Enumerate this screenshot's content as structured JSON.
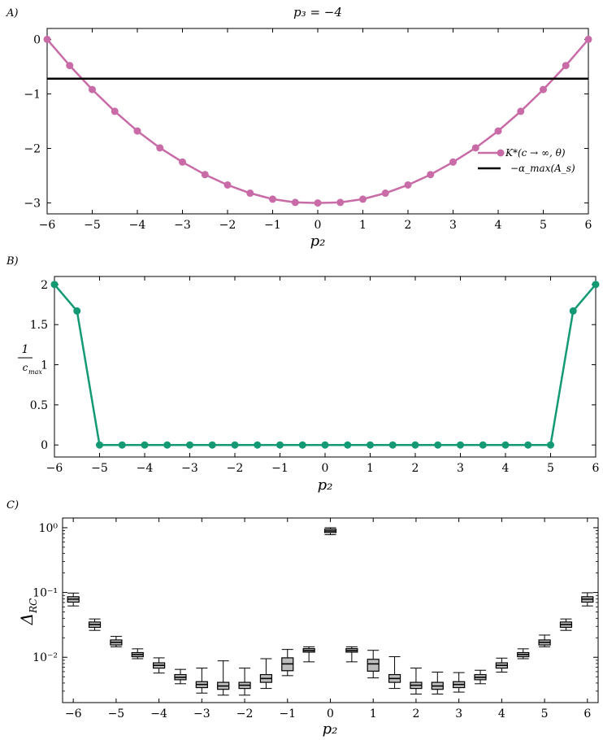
{
  "figure": {
    "title": "p₃ = −4"
  },
  "chart_data": [
    {
      "panel": "A)",
      "type": "line",
      "xlabel": "p₂",
      "ylabel": "",
      "xlim": [
        -6,
        6
      ],
      "ylim": [
        -3.2,
        0.2
      ],
      "xticks": [
        -6,
        -5,
        -4,
        -3,
        -2,
        -1,
        0,
        1,
        2,
        3,
        4,
        5,
        6
      ],
      "yticks": [
        0,
        -1,
        -2,
        -3
      ],
      "legend_position": "right",
      "series": [
        {
          "name": "K*(c → ∞, θ)",
          "color": "#c86ba6",
          "marker": "circle",
          "x": [
            -6,
            -5.5,
            -5,
            -4.5,
            -4,
            -3.5,
            -3,
            -2.5,
            -2,
            -1.5,
            -1,
            -0.5,
            0,
            0.5,
            1,
            1.5,
            2,
            2.5,
            3,
            3.5,
            4,
            4.5,
            5,
            5.5,
            6
          ],
          "y": [
            0,
            -0.48,
            -0.92,
            -1.32,
            -1.68,
            -1.99,
            -2.25,
            -2.48,
            -2.67,
            -2.82,
            -2.93,
            -2.99,
            -3.0,
            -2.99,
            -2.93,
            -2.82,
            -2.67,
            -2.48,
            -2.25,
            -1.99,
            -1.68,
            -1.32,
            -0.92,
            -0.48,
            0
          ]
        },
        {
          "name": "−α_max(A_s)",
          "color": "#000000",
          "marker": "none",
          "x": [
            -6,
            6
          ],
          "y": [
            -0.72,
            -0.72
          ]
        }
      ]
    },
    {
      "panel": "B)",
      "type": "line",
      "xlabel": "p₂",
      "ylabel": "1 / c_max",
      "xlim": [
        -6,
        6
      ],
      "ylim": [
        -0.15,
        2.1
      ],
      "xticks": [
        -6,
        -5,
        -4,
        -3,
        -2,
        -1,
        0,
        1,
        2,
        3,
        4,
        5,
        6
      ],
      "yticks": [
        0,
        0.5,
        1,
        1.5,
        2
      ],
      "series": [
        {
          "name": "",
          "color": "#139a74",
          "marker": "circle",
          "x": [
            -6,
            -5.5,
            -5,
            -4.5,
            -4,
            -3.5,
            -3,
            -2.5,
            -2,
            -1.5,
            -1,
            -0.5,
            0,
            0.5,
            1,
            1.5,
            2,
            2.5,
            3,
            3.5,
            4,
            4.5,
            5,
            5.5,
            6
          ],
          "y": [
            2,
            1.67,
            0,
            0,
            0,
            0,
            0,
            0,
            0,
            0,
            0,
            0,
            0,
            0,
            0,
            0,
            0,
            0,
            0,
            0,
            0,
            0,
            0,
            1.67,
            2
          ]
        }
      ]
    },
    {
      "panel": "C)",
      "type": "box",
      "xlabel": "p₂",
      "ylabel": "Δ_RC",
      "yscale": "log",
      "xlim": [
        -6.25,
        6.25
      ],
      "ylim_log10": [
        -2.7,
        0.15
      ],
      "xticks": [
        -6,
        -5,
        -4,
        -3,
        -2,
        -1,
        0,
        1,
        2,
        3,
        4,
        5,
        6
      ],
      "yticks": [
        "10⁰",
        "10⁻¹",
        "10⁻²"
      ],
      "ytick_values": [
        1,
        0.1,
        0.01
      ],
      "box_color": "#bdbdbd",
      "boxes": [
        {
          "x": -6,
          "min": 0.062,
          "q1": 0.071,
          "median": 0.079,
          "q3": 0.086,
          "max": 0.098
        },
        {
          "x": -5.5,
          "min": 0.026,
          "q1": 0.029,
          "median": 0.032,
          "q3": 0.035,
          "max": 0.039
        },
        {
          "x": -5,
          "min": 0.0145,
          "q1": 0.0155,
          "median": 0.017,
          "q3": 0.0185,
          "max": 0.021
        },
        {
          "x": -4.5,
          "min": 0.0095,
          "q1": 0.0102,
          "median": 0.011,
          "q3": 0.0118,
          "max": 0.0135
        },
        {
          "x": -4,
          "min": 0.0057,
          "q1": 0.0068,
          "median": 0.0075,
          "q3": 0.0082,
          "max": 0.0098
        },
        {
          "x": -3.5,
          "min": 0.0039,
          "q1": 0.0045,
          "median": 0.0049,
          "q3": 0.0054,
          "max": 0.0065
        },
        {
          "x": -3,
          "min": 0.0028,
          "q1": 0.0034,
          "median": 0.0038,
          "q3": 0.0042,
          "max": 0.0068
        },
        {
          "x": -2.5,
          "min": 0.0026,
          "q1": 0.0032,
          "median": 0.0036,
          "q3": 0.0041,
          "max": 0.0088
        },
        {
          "x": -2,
          "min": 0.0026,
          "q1": 0.0033,
          "median": 0.0037,
          "q3": 0.0041,
          "max": 0.0068
        },
        {
          "x": -1.5,
          "min": 0.0033,
          "q1": 0.0041,
          "median": 0.0047,
          "q3": 0.0054,
          "max": 0.0095
        },
        {
          "x": -1,
          "min": 0.0052,
          "q1": 0.0062,
          "median": 0.0079,
          "q3": 0.0098,
          "max": 0.0132
        },
        {
          "x": -0.5,
          "min": 0.0085,
          "q1": 0.012,
          "median": 0.0127,
          "q3": 0.0136,
          "max": 0.0145
        },
        {
          "x": 0,
          "min": 0.78,
          "q1": 0.84,
          "median": 0.89,
          "q3": 0.95,
          "max": 1.0
        },
        {
          "x": 0.5,
          "min": 0.0085,
          "q1": 0.012,
          "median": 0.0127,
          "q3": 0.0136,
          "max": 0.0145
        },
        {
          "x": 1,
          "min": 0.0048,
          "q1": 0.0061,
          "median": 0.0079,
          "q3": 0.0093,
          "max": 0.0128
        },
        {
          "x": 1.5,
          "min": 0.0033,
          "q1": 0.0041,
          "median": 0.0047,
          "q3": 0.0054,
          "max": 0.0102
        },
        {
          "x": 2,
          "min": 0.0027,
          "q1": 0.0033,
          "median": 0.0037,
          "q3": 0.0041,
          "max": 0.0068
        },
        {
          "x": 2.5,
          "min": 0.0027,
          "q1": 0.0032,
          "median": 0.0036,
          "q3": 0.0041,
          "max": 0.0059
        },
        {
          "x": 3,
          "min": 0.0029,
          "q1": 0.0034,
          "median": 0.0038,
          "q3": 0.0042,
          "max": 0.0058
        },
        {
          "x": 3.5,
          "min": 0.0039,
          "q1": 0.0045,
          "median": 0.0049,
          "q3": 0.0054,
          "max": 0.0063
        },
        {
          "x": 4,
          "min": 0.0059,
          "q1": 0.0068,
          "median": 0.0075,
          "q3": 0.0082,
          "max": 0.0097
        },
        {
          "x": 4.5,
          "min": 0.0095,
          "q1": 0.0102,
          "median": 0.011,
          "q3": 0.0118,
          "max": 0.0135
        },
        {
          "x": 5,
          "min": 0.0145,
          "q1": 0.0155,
          "median": 0.017,
          "q3": 0.0185,
          "max": 0.022
        },
        {
          "x": 5.5,
          "min": 0.026,
          "q1": 0.029,
          "median": 0.032,
          "q3": 0.035,
          "max": 0.039
        },
        {
          "x": 6,
          "min": 0.062,
          "q1": 0.071,
          "median": 0.079,
          "q3": 0.086,
          "max": 0.099
        }
      ]
    }
  ]
}
